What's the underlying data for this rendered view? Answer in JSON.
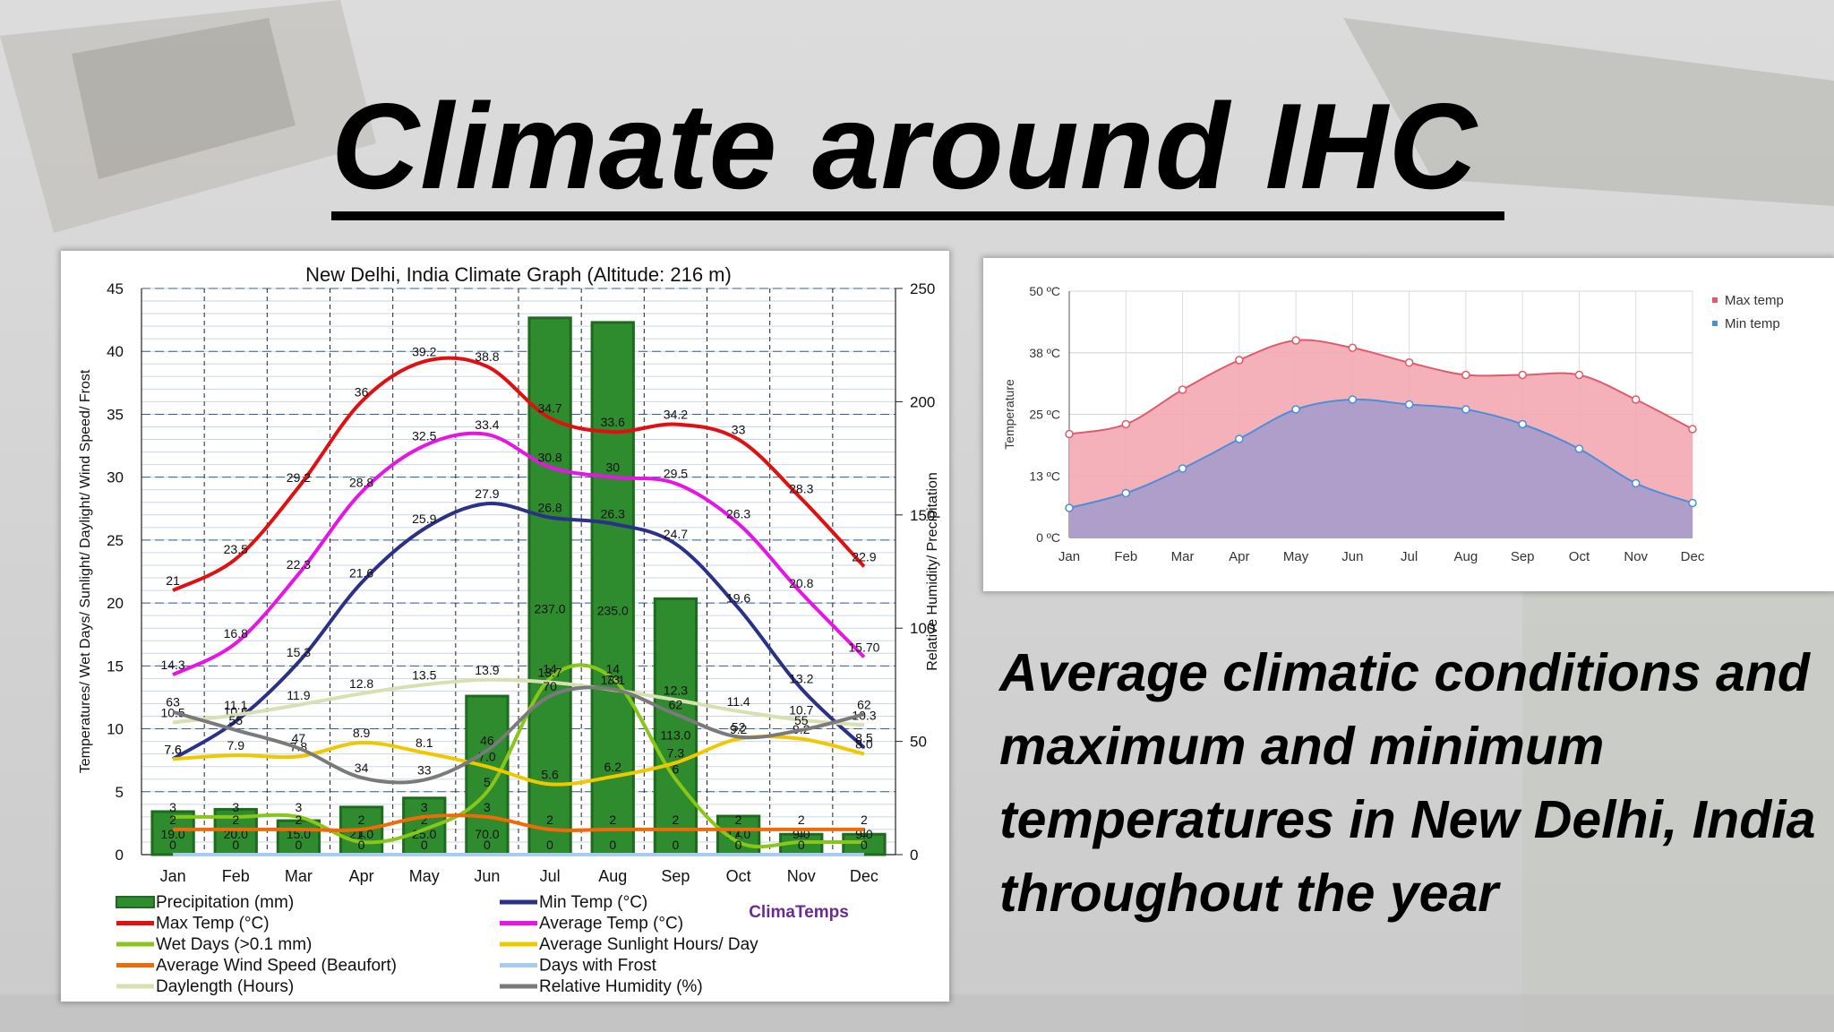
{
  "slide": {
    "title": "Climate around IHC",
    "caption": "Average climatic conditions and maximum and minimum temperatures in New Delhi, India throughout the year"
  },
  "chart_data": [
    {
      "type": "bar",
      "title": "New Delhi, India Climate Graph (Altitude: 216 m)",
      "ylabel": "Temperatures/ Wet Days/ Sunlight/ Daylight/ Wind Speed/ Frost",
      "y2label": "Relative Humidity/ Precipitation",
      "ylim": [
        0,
        45
      ],
      "y2lim": [
        0,
        250
      ],
      "yticks": [
        "0",
        "5",
        "10",
        "15",
        "20",
        "25",
        "30",
        "35",
        "40",
        "45"
      ],
      "y2ticks": [
        "0",
        "50",
        "100",
        "150",
        "200",
        "250"
      ],
      "categories": [
        "Jan",
        "Feb",
        "Mar",
        "Apr",
        "May",
        "Jun",
        "Jul",
        "Aug",
        "Sep",
        "Oct",
        "Nov",
        "Dec"
      ],
      "watermark": "ClimaTemps",
      "bars": {
        "name": "Precipitation (mm)",
        "color": "#2e8b2e",
        "axis": "right",
        "values": [
          19.0,
          20.0,
          15.0,
          21.0,
          25.0,
          70.0,
          237.0,
          235.0,
          113.0,
          17.0,
          9.0,
          9.0
        ],
        "labels": [
          "19.0",
          "20.0",
          "15.0",
          "21.0",
          "25.0",
          "70.0",
          "237.0",
          "235.0",
          "113.0",
          "17.0",
          "9.0",
          "9.0"
        ]
      },
      "series": [
        {
          "name": "Min Temp (°C)",
          "color": "#2b3187",
          "axis": "left",
          "values": [
            7.6,
            10.6,
            15.3,
            21.6,
            25.9,
            27.9,
            26.8,
            26.3,
            24.7,
            19.6,
            13.2,
            8.5
          ],
          "labels": [
            "7.6",
            "10.6",
            "15.3",
            "21.6",
            "25.9",
            "27.9",
            "26.8",
            "26.3",
            "24.7",
            "19.6",
            "13.2",
            "8.5"
          ]
        },
        {
          "name": "Max Temp (°C)",
          "color": "#e01010",
          "axis": "left",
          "values": [
            21,
            23.5,
            29.2,
            36,
            39.2,
            38.8,
            34.7,
            33.6,
            34.2,
            33,
            28.3,
            22.9
          ],
          "labels": [
            "21",
            "23.5",
            "29.2",
            "36",
            "39.2",
            "38.8",
            "34.7",
            "33.6",
            "34.2",
            "33",
            "28.3",
            "22.9"
          ]
        },
        {
          "name": "Average Temp (°C)",
          "color": "#e615e6",
          "axis": "left",
          "values": [
            14.3,
            16.8,
            22.3,
            28.8,
            32.5,
            33.4,
            30.8,
            30,
            29.5,
            26.3,
            20.8,
            15.7
          ],
          "labels": [
            "14.3",
            "16.8",
            "22.3",
            "28.8",
            "32.5",
            "33.4",
            "30.8",
            "30",
            "29.5",
            "26.3",
            "20.8",
            "15.70"
          ]
        },
        {
          "name": "Wet Days (>0.1 mm)",
          "color": "#88c61b",
          "axis": "left",
          "values": [
            3,
            3,
            3,
            1,
            2,
            5,
            14,
            14,
            6,
            1,
            1,
            1
          ],
          "labels": [
            "3",
            "3",
            "3",
            "1",
            "2",
            "5",
            "14",
            "14",
            "6",
            "1",
            "1",
            "1"
          ]
        },
        {
          "name": "Average Sunlight Hours/ Day",
          "color": "#f0c800",
          "axis": "left",
          "values": [
            7.6,
            7.9,
            7.8,
            8.9,
            8.1,
            7.0,
            5.6,
            6.2,
            7.3,
            9.2,
            9.2,
            8.0
          ],
          "labels": [
            "7.6",
            "7.9",
            "7.8",
            "8.9",
            "8.1",
            "7.0",
            "5.6",
            "6.2",
            "7.3",
            "9.2",
            "9.2",
            "8.0"
          ]
        },
        {
          "name": "Average Wind Speed (Beaufort)",
          "color": "#f06a0a",
          "axis": "left",
          "values": [
            2,
            2,
            2,
            2,
            3,
            3,
            2,
            2,
            2,
            2,
            2,
            2
          ],
          "labels": [
            "2",
            "2",
            "2",
            "2",
            "3",
            "3",
            "2",
            "2",
            "2",
            "2",
            "2",
            "2"
          ]
        },
        {
          "name": "Days with Frost",
          "color": "#a8cbf0",
          "axis": "left",
          "values": [
            0,
            0,
            0,
            0,
            0,
            0,
            0,
            0,
            0,
            0,
            0,
            0
          ],
          "labels": [
            "0",
            "0",
            "0",
            "0",
            "0",
            "0",
            "0",
            "0",
            "0",
            "0",
            "0",
            "0"
          ]
        },
        {
          "name": "Daylength (Hours)",
          "color": "#d6e0b0",
          "axis": "left",
          "values": [
            10.5,
            11.1,
            11.9,
            12.8,
            13.5,
            13.9,
            13.7,
            13.1,
            12.3,
            11.4,
            10.7,
            10.3
          ],
          "labels": [
            "10.5",
            "11.1",
            "11.9",
            "12.8",
            "13.5",
            "13.9",
            "13.7",
            "13.1",
            "12.3",
            "11.4",
            "10.7",
            "10.3"
          ]
        },
        {
          "name": "Relative Humidity (%)",
          "color": "#7a7a7a",
          "axis": "right",
          "values": [
            63,
            55,
            47,
            34,
            33,
            46,
            70,
            73,
            62,
            52,
            55,
            62
          ],
          "labels": [
            "63",
            "55",
            "47",
            "34",
            "33",
            "46",
            "70",
            "73",
            "62",
            "52",
            "55",
            "62"
          ]
        }
      ],
      "legend_order": [
        "Precipitation (mm)",
        "Min Temp (°C)",
        "Max Temp (°C)",
        "Average Temp (°C)",
        "Wet Days (>0.1 mm)",
        "Average Sunlight Hours/ Day",
        "Average Wind Speed (Beaufort)",
        "Days with Frost",
        "Daylength (Hours)",
        "Relative Humidity (%)"
      ],
      "grid": true
    },
    {
      "type": "area",
      "ylabel": "Temperature",
      "categories": [
        "Jan",
        "Feb",
        "Mar",
        "Apr",
        "May",
        "Jun",
        "Jul",
        "Aug",
        "Sep",
        "Oct",
        "Nov",
        "Dec"
      ],
      "ylim": [
        0,
        50
      ],
      "yticks": [
        "0 ºC",
        "13 ºC",
        "25 ºC",
        "38 ºC",
        "50 ºC"
      ],
      "ytick_values": [
        0,
        12.5,
        25,
        37.5,
        50
      ],
      "legend": "top-right",
      "series": [
        {
          "name": "Max temp",
          "color": "#e05a6a",
          "fill": "#f4a9b3",
          "values": [
            21,
            23,
            30,
            36,
            40,
            38.5,
            35.5,
            33,
            33,
            33,
            28,
            22
          ]
        },
        {
          "name": "Min temp",
          "color": "#4a8fd8",
          "fill": "#a89ccc",
          "values": [
            6,
            9,
            14,
            20,
            26,
            28,
            27,
            26,
            23,
            18,
            11,
            7
          ]
        }
      ],
      "grid": true
    }
  ]
}
